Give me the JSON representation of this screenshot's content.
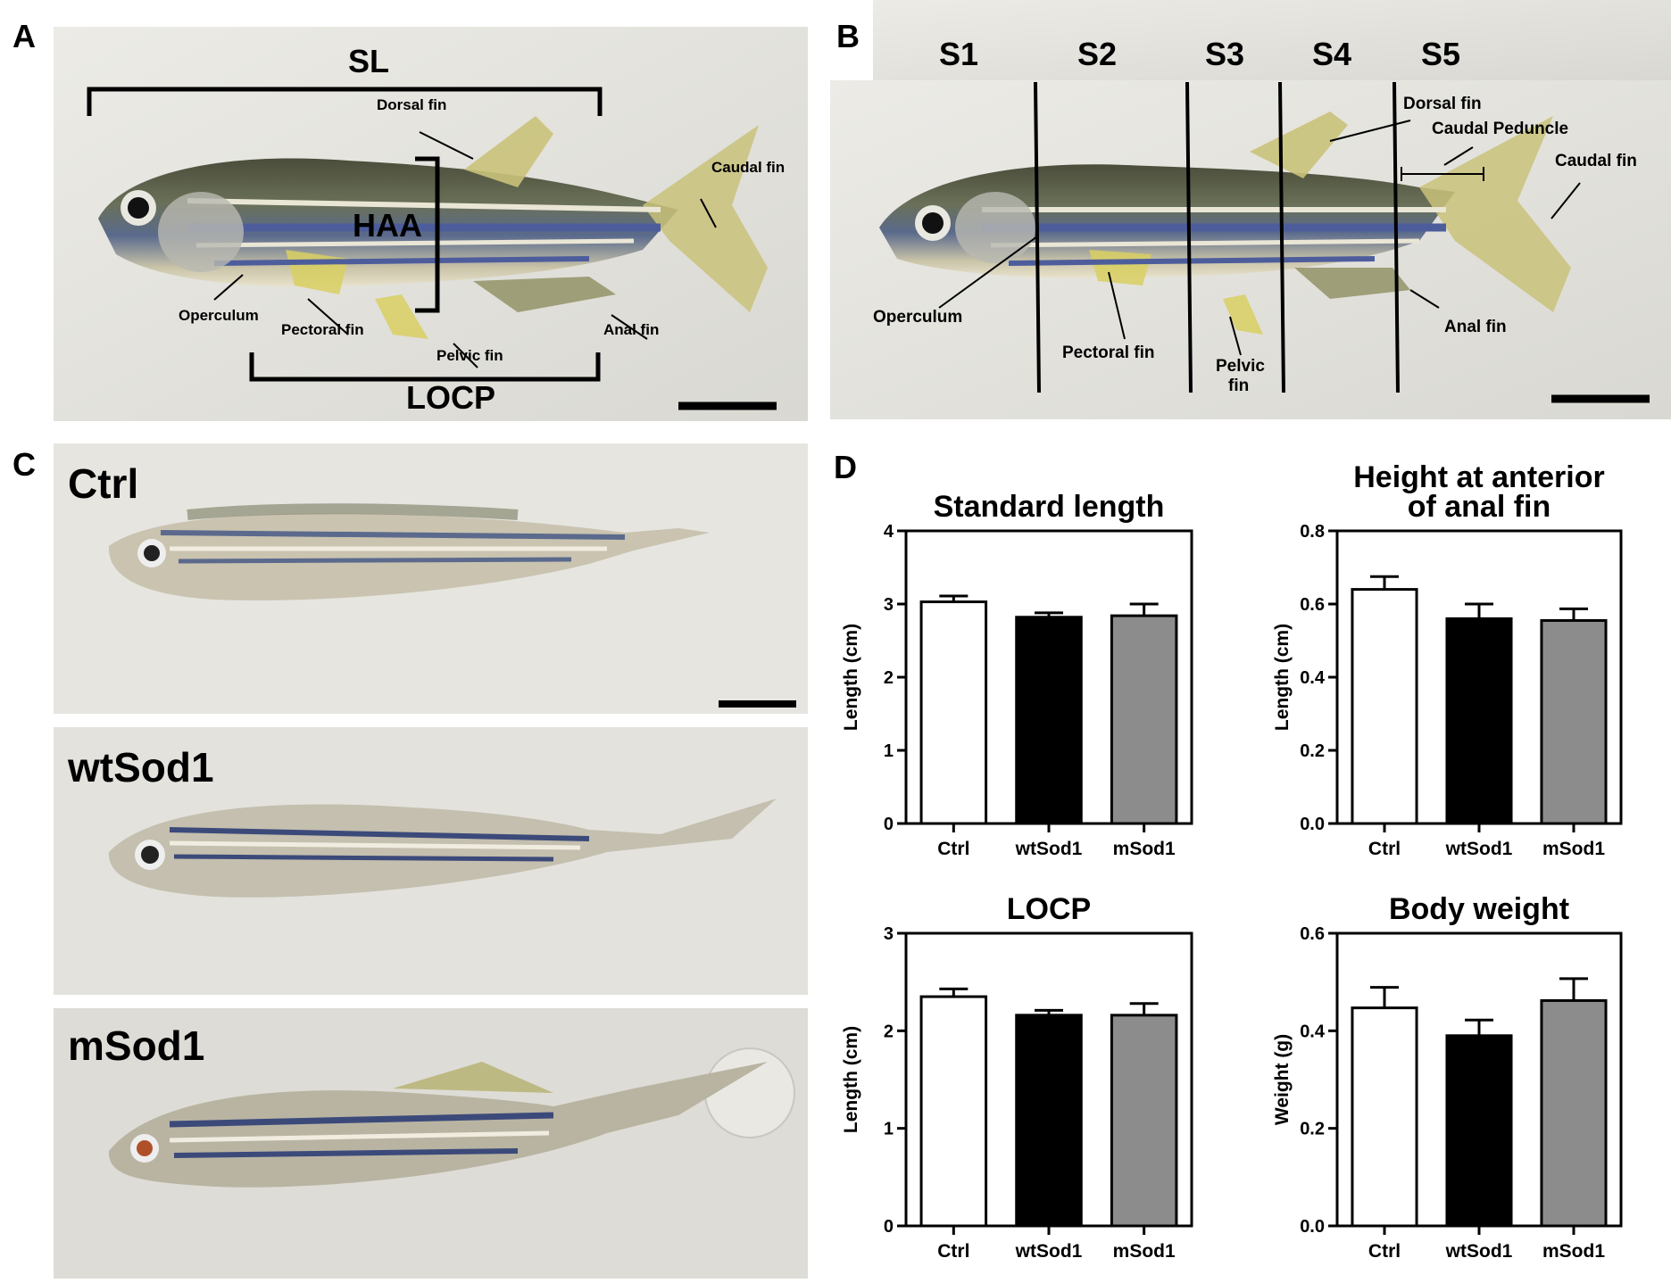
{
  "panels": {
    "a": {
      "letter": "A",
      "sl": "SL",
      "haa": "HAA",
      "locp": "LOCP",
      "labels": {
        "dorsal": "Dorsal fin",
        "caudal": "Caudal fin",
        "operculum": "Operculum",
        "pectoral": "Pectoral fin",
        "pelvic": "Pelvic fin",
        "anal": "Anal fin"
      }
    },
    "b": {
      "letter": "B",
      "sections": [
        "S1",
        "S2",
        "S3",
        "S4",
        "S5"
      ],
      "labels": {
        "dorsal": "Dorsal fin",
        "peduncle": "Caudal Peduncle",
        "caudal": "Caudal fin",
        "operculum": "Operculum",
        "pectoral": "Pectoral fin",
        "pelvic1": "Pelvic",
        "pelvic2": "fin",
        "anal": "Anal fin"
      }
    },
    "c": {
      "letter": "C",
      "fish": [
        "Ctrl",
        "wtSod1",
        "mSod1"
      ]
    },
    "d": {
      "letter": "D"
    }
  },
  "colors": {
    "ctrl": "#ffffff",
    "wtSod1": "#000000",
    "mSod1": "#8c8c8c"
  },
  "chart_data": [
    {
      "type": "bar",
      "title": "Standard length",
      "ylabel": "Length (cm)",
      "categories": [
        "Ctrl",
        "wtSod1",
        "mSod1"
      ],
      "values": [
        3.03,
        2.82,
        2.84
      ],
      "errors": [
        0.08,
        0.06,
        0.16
      ],
      "ylim": [
        0,
        4
      ],
      "yticks": [
        "0",
        "1",
        "2",
        "3",
        "4"
      ]
    },
    {
      "type": "bar",
      "title": "Height at anterior of anal fin",
      "title_lines": [
        "Height at anterior",
        "of anal fin"
      ],
      "ylabel": "Length (cm)",
      "categories": [
        "Ctrl",
        "wtSod1",
        "mSod1"
      ],
      "values": [
        0.64,
        0.56,
        0.555
      ],
      "errors": [
        0.035,
        0.04,
        0.032
      ],
      "ylim": [
        0,
        0.8
      ],
      "yticks": [
        "0.0",
        "0.2",
        "0.4",
        "0.6",
        "0.8"
      ]
    },
    {
      "type": "bar",
      "title": "LOCP",
      "ylabel": "Length (cm)",
      "categories": [
        "Ctrl",
        "wtSod1",
        "mSod1"
      ],
      "values": [
        2.35,
        2.16,
        2.16
      ],
      "errors": [
        0.08,
        0.05,
        0.12
      ],
      "ylim": [
        0,
        3
      ],
      "yticks": [
        "0",
        "1",
        "2",
        "3"
      ]
    },
    {
      "type": "bar",
      "title": "Body weight",
      "ylabel": "Weight (g)",
      "categories": [
        "Ctrl",
        "wtSod1",
        "mSod1"
      ],
      "values": [
        0.447,
        0.39,
        0.462
      ],
      "errors": [
        0.042,
        0.032,
        0.045
      ],
      "ylim": [
        0,
        0.6
      ],
      "yticks": [
        "0.0",
        "0.2",
        "0.4",
        "0.6"
      ]
    }
  ]
}
